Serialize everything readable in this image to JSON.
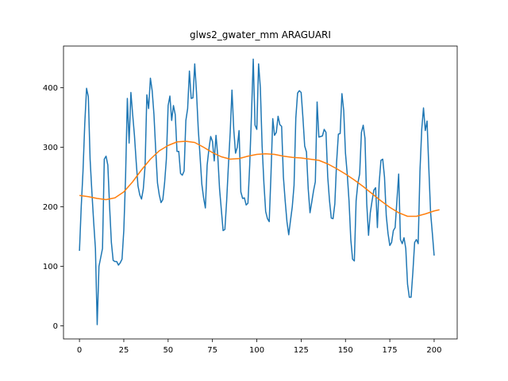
{
  "chart_data": {
    "type": "line",
    "title": "glws2_gwater_mm ARAGUARI",
    "xlabel": "",
    "ylabel": "",
    "xlim": [
      -9,
      213
    ],
    "ylim": [
      -22,
      470
    ],
    "xticks": [
      0,
      25,
      50,
      75,
      100,
      125,
      150,
      175,
      200
    ],
    "yticks": [
      0,
      100,
      200,
      300,
      400
    ],
    "grid": false,
    "series": [
      {
        "color": "#1f77b4",
        "values": [
          126,
          200,
          260,
          340,
          399,
          385,
          280,
          225,
          175,
          130,
          2,
          100,
          115,
          130,
          280,
          285,
          270,
          200,
          140,
          110,
          108,
          108,
          102,
          106,
          112,
          160,
          250,
          382,
          307,
          392,
          355,
          320,
          275,
          235,
          220,
          213,
          230,
          268,
          388,
          365,
          416,
          395,
          355,
          295,
          240,
          220,
          207,
          212,
          240,
          280,
          370,
          386,
          345,
          370,
          355,
          293,
          293,
          256,
          253,
          260,
          345,
          365,
          428,
          382,
          383,
          440,
          392,
          330,
          285,
          238,
          215,
          198,
          270,
          297,
          318,
          310,
          277,
          320,
          285,
          230,
          195,
          160,
          162,
          210,
          270,
          325,
          396,
          330,
          290,
          300,
          328,
          225,
          214,
          215,
          203,
          206,
          270,
          355,
          448,
          337,
          330,
          440,
          400,
          302,
          240,
          192,
          180,
          175,
          255,
          348,
          320,
          325,
          352,
          338,
          335,
          250,
          210,
          175,
          153,
          177,
          200,
          236,
          349,
          391,
          395,
          392,
          350,
          302,
          292,
          230,
          190,
          208,
          227,
          242,
          376,
          317,
          318,
          319,
          330,
          325,
          250,
          210,
          181,
          180,
          205,
          275,
          322,
          323,
          390,
          362,
          290,
          255,
          210,
          145,
          112,
          109,
          210,
          240,
          255,
          325,
          337,
          315,
          205,
          152,
          190,
          210,
          228,
          232,
          165,
          240,
          278,
          280,
          250,
          185,
          155,
          135,
          140,
          160,
          165,
          210,
          255,
          145,
          138,
          148,
          130,
          70,
          48,
          48,
          90,
          140,
          145,
          138,
          260,
          330,
          366,
          328,
          344,
          265,
          190,
          155,
          118
        ],
        "x_start": 0,
        "x_step": 1
      },
      {
        "color": "#ff7f0e",
        "x": [
          0,
          5,
          10,
          15,
          20,
          25,
          30,
          35,
          40,
          45,
          50,
          55,
          60,
          65,
          70,
          75,
          80,
          85,
          90,
          95,
          100,
          105,
          110,
          115,
          120,
          125,
          130,
          135,
          140,
          145,
          150,
          155,
          160,
          165,
          170,
          175,
          180,
          185,
          190,
          195,
          200,
          203
        ],
        "y": [
          219,
          217,
          214,
          212,
          215,
          225,
          242,
          262,
          280,
          294,
          303,
          309,
          310,
          308,
          300,
          291,
          284,
          280,
          281,
          285,
          288,
          289,
          288,
          285,
          283,
          282,
          280,
          278,
          272,
          264,
          255,
          245,
          234,
          222,
          210,
          199,
          190,
          184,
          184,
          188,
          193,
          195
        ]
      }
    ]
  }
}
